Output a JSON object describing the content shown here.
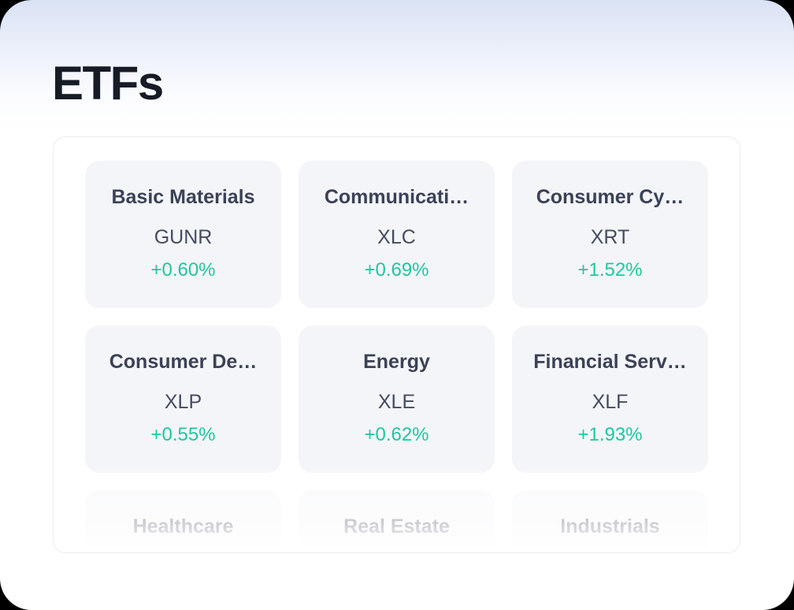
{
  "page": {
    "title": "ETFs",
    "background_top_color": "#d9e2f5",
    "positive_change_color": "#1fc7a0"
  },
  "etf_grid": {
    "cards": [
      {
        "sector": "Basic Materials",
        "ticker": "GUNR",
        "change": "+0.60%"
      },
      {
        "sector": "Communicati…",
        "ticker": "XLC",
        "change": "+0.69%"
      },
      {
        "sector": "Consumer Cy…",
        "ticker": "XRT",
        "change": "+1.52%"
      },
      {
        "sector": "Consumer De…",
        "ticker": "XLP",
        "change": "+0.55%"
      },
      {
        "sector": "Energy",
        "ticker": "XLE",
        "change": "+0.62%"
      },
      {
        "sector": "Financial Serv…",
        "ticker": "XLF",
        "change": "+1.93%"
      },
      {
        "sector": "Healthcare"
      },
      {
        "sector": "Real Estate"
      },
      {
        "sector": "Industrials"
      }
    ]
  }
}
